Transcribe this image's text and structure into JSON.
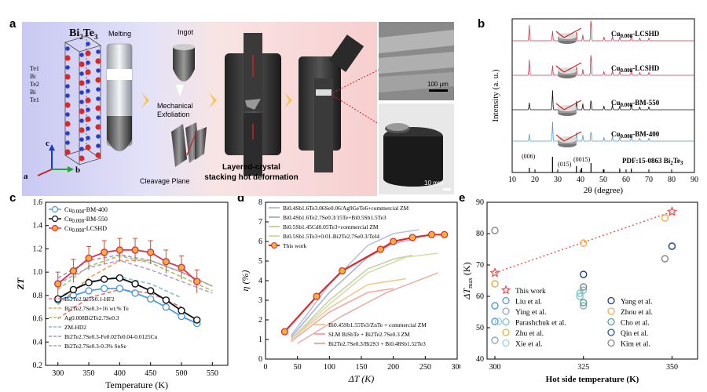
{
  "panel_labels": {
    "a": "a",
    "b": "b",
    "c": "c",
    "d": "d",
    "e": "e"
  },
  "schematic": {
    "formula": "Bi2Te3",
    "formula_base": "Bi",
    "formula_sub1": "2",
    "formula_mid": "Te",
    "formula_sub2": "3",
    "layers": [
      "Te1",
      "Bi",
      "Te2",
      "Bi",
      "Te1"
    ],
    "steps": [
      "Melting",
      "Ingot",
      "Mechanical Exfoliation",
      "Cleavage Plane",
      "Layered-crystal stacking hot deformation"
    ],
    "step_line1": "Layered-crystal",
    "step_line2": "stacking hot deformation",
    "axes": [
      "c",
      "a",
      "b"
    ],
    "sem_scale": "100 μm",
    "photo_scale": "10 mm"
  },
  "xrd": {
    "ylabel": "Intensity (a. u.)",
    "xlabel": "2θ (degree)",
    "traces": [
      {
        "label": "Cu0.008-LCSHD",
        "base": "Cu",
        "sub": "0.008",
        "suffix": "-LCSHD",
        "color": "#d8334a"
      },
      {
        "label": "Cu0.008-LCSHD",
        "base": "Cu",
        "sub": "0.008",
        "suffix": "-LCSHD",
        "color": "#d8334a"
      },
      {
        "label": "Cu0.008-BM-550",
        "base": "Cu",
        "sub": "0.008",
        "suffix": "-BM-550",
        "color": "#111111"
      },
      {
        "label": "Cu0.008-BM-400",
        "base": "Cu",
        "sub": "0.008",
        "suffix": "-BM-400",
        "color": "#4d9be0"
      }
    ],
    "pdf_label": "PDF:15-0863 Bi2Te3",
    "peak_labels": [
      "(006)",
      "(015)",
      "(0015)"
    ],
    "x_ticks": [
      "10",
      "20",
      "30",
      "40",
      "50",
      "60",
      "70",
      "80",
      "90"
    ]
  },
  "chart_data": [
    {
      "type": "line",
      "title": "",
      "xlabel": "Temperature (K)",
      "ylabel": "ZT",
      "xlim": [
        280,
        575
      ],
      "ylim": [
        0.2,
        1.6
      ],
      "x_ticks": [
        300,
        350,
        400,
        450,
        500,
        550
      ],
      "y_ticks": [
        0.2,
        0.4,
        0.6,
        0.8,
        1.0,
        1.2,
        1.4,
        1.6
      ],
      "series": [
        {
          "name": "Cu0.008-BM-400",
          "base": "Cu",
          "sub": "0.008",
          "suffix": "-BM-400",
          "color": "#4d9be0",
          "x": [
            300,
            325,
            350,
            375,
            400,
            425,
            450,
            475,
            500,
            525
          ],
          "y": [
            0.76,
            0.8,
            0.84,
            0.86,
            0.86,
            0.82,
            0.77,
            0.7,
            0.62,
            0.56
          ]
        },
        {
          "name": "Cu0.008-BM-550",
          "base": "Cu",
          "sub": "0.008",
          "suffix": "-BM-550",
          "color": "#111111",
          "x": [
            300,
            325,
            350,
            375,
            400,
            425,
            450,
            475,
            500,
            525
          ],
          "y": [
            0.77,
            0.85,
            0.91,
            0.94,
            0.95,
            0.9,
            0.84,
            0.76,
            0.67,
            0.59
          ]
        },
        {
          "name": "Cu0.008-LCSHD",
          "base": "Cu",
          "sub": "0.008",
          "suffix": "-LCSHD",
          "color": "#d8334a",
          "x": [
            300,
            325,
            350,
            375,
            400,
            425,
            450,
            475,
            500,
            525
          ],
          "y": [
            0.9,
            1.01,
            1.12,
            1.17,
            1.19,
            1.19,
            1.17,
            1.09,
            1.04,
            0.92
          ]
        },
        {
          "name": "Bi2Te2.925S0.1-HF2",
          "color": "#e07070",
          "dashed": true,
          "x": [
            300,
            350,
            400,
            450,
            500
          ],
          "y": [
            0.6,
            0.78,
            0.85,
            0.82,
            0.7
          ]
        },
        {
          "name": "Bi2Te2.7Se0.3+16 wt.% Te",
          "color": "#e8a060",
          "dashed": true,
          "x": [
            300,
            350,
            400,
            450,
            500,
            550
          ],
          "y": [
            0.72,
            0.95,
            1.1,
            1.1,
            1.0,
            0.88
          ]
        },
        {
          "name": "Ag0.008Bi2Te2.7Se0.3",
          "color": "#a3c46a",
          "dashed": true,
          "x": [
            300,
            350,
            400,
            450,
            500,
            550
          ],
          "y": [
            0.85,
            1.05,
            1.14,
            1.08,
            0.96,
            0.84
          ]
        },
        {
          "name": "ZM-HD2",
          "color": "#7ec4c4",
          "dashed": true,
          "x": [
            300,
            350,
            400,
            450,
            500
          ],
          "y": [
            0.78,
            0.92,
            0.96,
            0.9,
            0.78
          ]
        },
        {
          "name": "Bi2Te2.7Se0.3-Fe0.02Te0.04-0.0125Cu",
          "color": "#9a9ac8",
          "dashed": true,
          "x": [
            300,
            350,
            400,
            450,
            500,
            550
          ],
          "y": [
            0.95,
            1.1,
            1.15,
            1.1,
            1.0,
            0.88
          ]
        },
        {
          "name": "Bi2Te2.7Se0.3-0.3% SnSe",
          "color": "#b89ad0",
          "dashed": true,
          "x": [
            300,
            350,
            400,
            450,
            500,
            550
          ],
          "y": [
            0.9,
            1.04,
            1.1,
            1.02,
            0.92,
            0.82
          ]
        }
      ],
      "legend": [
        {
          "text": "Bi2Te2.925S0.1-HF2",
          "color": "#e07070"
        },
        {
          "text": "Bi2Te2.7Se0.3+16 wt.% Te",
          "color": "#e8a060"
        },
        {
          "text": "Ag0.008Bi2Te2.7Se0.3",
          "color": "#a3c46a"
        },
        {
          "text": "ZM-HD2",
          "color": "#7ec4c4"
        },
        {
          "text": "Bi2Te2.7Se0.3-Fe0.02Te0.04-0.0125Cu",
          "color": "#9a9ac8"
        },
        {
          "text": "Bi2Te2.7Se0.3-0.3% SnSe",
          "color": "#b89ad0"
        }
      ],
      "legend_position": "bottom-left"
    },
    {
      "type": "line",
      "title": "",
      "xlabel": "ΔT (K)",
      "ylabel": "η (%)",
      "xlim": [
        0,
        300
      ],
      "ylim": [
        0,
        8
      ],
      "x_ticks": [
        0,
        50,
        100,
        150,
        200,
        250,
        300
      ],
      "y_ticks": [
        0,
        1,
        2,
        3,
        4,
        5,
        6,
        7,
        8
      ],
      "series": [
        {
          "name": "This work",
          "color": "#e02a2a",
          "markers": true,
          "x": [
            30,
            80,
            120,
            180,
            200,
            230,
            260,
            280
          ],
          "y": [
            1.4,
            3.2,
            4.5,
            5.6,
            6.0,
            6.2,
            6.35,
            6.35
          ]
        },
        {
          "name": "Bi0.4Sb1.6Te3.06Se0.06/Ag9GeTe6+commercial ZM",
          "color": "#b8c0e0",
          "x": [
            40,
            100,
            160,
            200,
            240
          ],
          "y": [
            1.2,
            3.8,
            5.8,
            6.4,
            6.6
          ]
        },
        {
          "name": "Bi0.4Sb1.6Te2.7Se0.3/15Te+Bi0.5Sb1.5Te3",
          "color": "#a8b4d8",
          "x": [
            40,
            100,
            160,
            200,
            230
          ],
          "y": [
            1.1,
            3.4,
            5.2,
            5.9,
            6.1
          ]
        },
        {
          "name": "Bi0.5Sb1.45Cd0.05Te3+commercial ZM",
          "color": "#c8d0a8",
          "x": [
            40,
            100,
            160,
            200,
            230
          ],
          "y": [
            1.0,
            3.0,
            4.6,
            5.1,
            5.3
          ]
        },
        {
          "name": "Bi0.5Sb1.5Te3+0.01-Bi2Te2.7Se0.3/TeI4",
          "color": "#d6dca8",
          "x": [
            40,
            100,
            160,
            220,
            270
          ],
          "y": [
            1.0,
            2.8,
            4.4,
            5.2,
            5.4
          ]
        },
        {
          "name": "Bi0.45Sb1.55Te3/ZnTe+commercial ZM",
          "color": "#f0c890",
          "x": [
            40,
            100,
            160,
            220
          ],
          "y": [
            1.0,
            2.6,
            3.8,
            4.1
          ]
        },
        {
          "name": "SLM BiSbTe+Bi2Te2.7Se0.3 ZM",
          "color": "#e8b0a8",
          "x": [
            50,
            120,
            190,
            270
          ],
          "y": [
            0.8,
            2.2,
            3.4,
            4.4
          ]
        },
        {
          "name": "Bi2Te2.7Se0.3/Bi2S3+Bi0.48Sb1.52Te3",
          "color": "#f0a8a0",
          "x": [
            40,
            100,
            160,
            200
          ],
          "y": [
            0.9,
            2.4,
            3.4,
            3.6
          ]
        }
      ],
      "legend_top": [
        {
          "text": "Bi0.4Sb1.6Te3.06Se0.06/Ag9GeTe6+commercial ZM",
          "color": "#b8c0e0"
        },
        {
          "text": "Bi0.4Sb1.6Te2.7Se0.3/15Te+Bi0.5Sb1.5Te3",
          "color": "#a8b4d8"
        },
        {
          "text": "Bi0.5Sb1.45Cd0.05Te3+commercial ZM",
          "color": "#c8d0a8"
        },
        {
          "text": "Bi0.5Sb1.5Te3+0.01-Bi2Te2.7Se0.3/TeI4",
          "color": "#d6dca8"
        },
        {
          "text": "This work",
          "color": "#e02a2a"
        }
      ],
      "legend_bottom": [
        {
          "text": "Bi0.45Sb1.55Te3/ZnTe + commercial ZM",
          "color": "#f0c890"
        },
        {
          "text": "SLM BiSbTe + Bi2Te2.7Se0.3 ZM",
          "color": "#e8b0a8"
        },
        {
          "text": "Bi2Te2.7Se0.3/Bi2S3 + Bi0.48Sb1.52Te3",
          "color": "#f0a8a0"
        }
      ]
    },
    {
      "type": "scatter",
      "title": "",
      "xlabel": "Hot side temperature (K)",
      "ylabel": "ΔTmax (K)",
      "xlim": [
        300,
        355
      ],
      "ylim": [
        40,
        90
      ],
      "x_ticks": [
        300,
        325,
        350
      ],
      "y_ticks": [
        40,
        50,
        60,
        70,
        80,
        90
      ],
      "this_work_trend": {
        "x": [
          300,
          350
        ],
        "y": [
          67.5,
          87
        ]
      },
      "groups": [
        {
          "name": "This work",
          "color": "#e05050",
          "marker": "star",
          "points": [
            [
              300,
              67.5
            ],
            [
              350,
              87
            ]
          ]
        },
        {
          "name": "Liu et al.",
          "color": "#4d9be0",
          "points": [
            [
              300,
              57
            ],
            [
              300,
              52
            ]
          ]
        },
        {
          "name": "Ying et al.",
          "color": "#8fa8c0",
          "points": [
            [
              300,
              46
            ],
            [
              325,
              57
            ]
          ]
        },
        {
          "name": "Parashchuk et al.",
          "color": "#7ec4c4",
          "points": [
            [
              324,
              60
            ],
            [
              324,
              61
            ],
            [
              325,
              62
            ]
          ]
        },
        {
          "name": "Zhu et al.",
          "color": "#e8b040",
          "points": [
            [
              300,
              64
            ]
          ]
        },
        {
          "name": "Xie et al.",
          "color": "#a0d0e0",
          "points": [
            [
              301,
              52
            ]
          ]
        },
        {
          "name": "Yang et al.",
          "color": "#1e3c8a",
          "points": [
            [
              325,
              67
            ],
            [
              350,
              76
            ]
          ]
        },
        {
          "name": "Zhou et al.",
          "color": "#f0b050",
          "points": [
            [
              325,
              77
            ],
            [
              348,
              85
            ]
          ]
        },
        {
          "name": "Cho et al.",
          "color": "#5aa090",
          "points": [
            [
              325,
              58
            ]
          ]
        },
        {
          "name": "Qin et al.",
          "color": "#2a5a8a",
          "points": [
            [
              350,
              76
            ]
          ]
        },
        {
          "name": "Kim et al.",
          "color": "#888888",
          "points": [
            [
              300,
              81
            ],
            [
              325,
              63
            ],
            [
              348,
              72
            ]
          ]
        }
      ],
      "legend_col1": [
        "This work",
        "Liu et al.",
        "Ying et al.",
        "Parashchuk et al.",
        "Zhu et al.",
        "Xie et al."
      ],
      "legend_col2": [
        "Yang et al.",
        "Zhou et al.",
        "Cho et al.",
        "Qin et al.",
        "Kim et al."
      ]
    }
  ]
}
